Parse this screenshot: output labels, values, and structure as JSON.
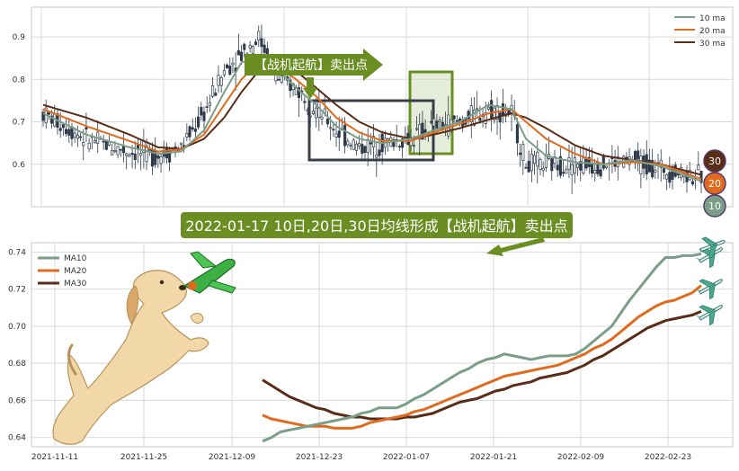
{
  "colors": {
    "ma10": "#7a9e88",
    "ma20": "#e06b1e",
    "ma30": "#5a2d18",
    "candle": "#2e3a4a",
    "arrow_green": "#6b8e23",
    "banner_bg": "#6b8e23",
    "banner_border": "#4b2a6a",
    "frame_dark": "#3a3f47",
    "grid": "#d9d9d9",
    "plot_bg": "#ffffff"
  },
  "annotation": {
    "arrow_text": "【战机起航】卖出点",
    "banner_text": "2022-01-17 10日,20日,30日均线形成【战机起航】卖出点"
  },
  "badges": [
    "30",
    "20",
    "10"
  ],
  "icons": [
    "airplane-icon",
    "dog-illustration",
    "toy-plane-icon"
  ],
  "chart_data": [
    {
      "type": "line",
      "panel": "top",
      "title": "",
      "ylim": [
        0.5,
        0.97
      ],
      "yticks": [
        0.6,
        0.7,
        0.8,
        0.9
      ],
      "ytick_labels": [
        "0.6",
        "0.7",
        "0.8",
        "0.9"
      ],
      "grid": true,
      "legend_position": "top-right",
      "series_names": [
        "10 ma",
        "20 ma",
        "30 ma"
      ],
      "n_bars": 230,
      "price_key": [
        [
          0,
          0.72
        ],
        [
          15,
          0.66
        ],
        [
          30,
          0.63
        ],
        [
          40,
          0.62
        ],
        [
          48,
          0.64
        ],
        [
          56,
          0.72
        ],
        [
          63,
          0.82
        ],
        [
          69,
          0.86
        ],
        [
          75,
          0.9
        ],
        [
          82,
          0.8
        ],
        [
          88,
          0.78
        ],
        [
          95,
          0.73
        ],
        [
          102,
          0.68
        ],
        [
          110,
          0.64
        ],
        [
          118,
          0.65
        ],
        [
          128,
          0.66
        ],
        [
          136,
          0.69
        ],
        [
          145,
          0.7
        ],
        [
          155,
          0.73
        ],
        [
          163,
          0.72
        ],
        [
          168,
          0.6
        ],
        [
          175,
          0.6
        ],
        [
          185,
          0.6
        ],
        [
          195,
          0.6
        ],
        [
          205,
          0.61
        ],
        [
          215,
          0.59
        ],
        [
          229,
          0.57
        ]
      ],
      "ma10_key": [
        [
          0,
          0.72
        ],
        [
          15,
          0.67
        ],
        [
          30,
          0.64
        ],
        [
          40,
          0.625
        ],
        [
          48,
          0.63
        ],
        [
          56,
          0.68
        ],
        [
          63,
          0.77
        ],
        [
          69,
          0.84
        ],
        [
          75,
          0.85
        ],
        [
          82,
          0.82
        ],
        [
          88,
          0.78
        ],
        [
          95,
          0.74
        ],
        [
          102,
          0.69
        ],
        [
          110,
          0.66
        ],
        [
          118,
          0.65
        ],
        [
          128,
          0.66
        ],
        [
          136,
          0.68
        ],
        [
          145,
          0.7
        ],
        [
          155,
          0.74
        ],
        [
          163,
          0.73
        ],
        [
          168,
          0.66
        ],
        [
          175,
          0.62
        ],
        [
          185,
          0.605
        ],
        [
          195,
          0.6
        ],
        [
          205,
          0.61
        ],
        [
          215,
          0.595
        ],
        [
          229,
          0.56
        ]
      ],
      "ma20_key": [
        [
          0,
          0.73
        ],
        [
          15,
          0.69
        ],
        [
          30,
          0.655
        ],
        [
          40,
          0.63
        ],
        [
          48,
          0.635
        ],
        [
          56,
          0.67
        ],
        [
          63,
          0.74
        ],
        [
          69,
          0.8
        ],
        [
          75,
          0.84
        ],
        [
          82,
          0.83
        ],
        [
          88,
          0.8
        ],
        [
          95,
          0.76
        ],
        [
          102,
          0.71
        ],
        [
          110,
          0.675
        ],
        [
          118,
          0.655
        ],
        [
          128,
          0.655
        ],
        [
          136,
          0.675
        ],
        [
          145,
          0.695
        ],
        [
          155,
          0.72
        ],
        [
          163,
          0.73
        ],
        [
          168,
          0.7
        ],
        [
          175,
          0.66
        ],
        [
          185,
          0.625
        ],
        [
          195,
          0.6
        ],
        [
          205,
          0.605
        ],
        [
          215,
          0.6
        ],
        [
          229,
          0.565
        ]
      ],
      "ma30_key": [
        [
          0,
          0.74
        ],
        [
          15,
          0.71
        ],
        [
          30,
          0.67
        ],
        [
          40,
          0.64
        ],
        [
          48,
          0.636
        ],
        [
          56,
          0.66
        ],
        [
          63,
          0.71
        ],
        [
          69,
          0.77
        ],
        [
          75,
          0.82
        ],
        [
          82,
          0.83
        ],
        [
          88,
          0.82
        ],
        [
          95,
          0.78
        ],
        [
          102,
          0.74
        ],
        [
          110,
          0.7
        ],
        [
          118,
          0.675
        ],
        [
          128,
          0.66
        ],
        [
          136,
          0.67
        ],
        [
          145,
          0.685
        ],
        [
          155,
          0.705
        ],
        [
          163,
          0.72
        ],
        [
          168,
          0.71
        ],
        [
          175,
          0.685
        ],
        [
          185,
          0.645
        ],
        [
          195,
          0.62
        ],
        [
          205,
          0.61
        ],
        [
          215,
          0.6
        ],
        [
          229,
          0.575
        ]
      ]
    },
    {
      "type": "line",
      "panel": "bottom",
      "title": "",
      "ylim": [
        0.635,
        0.745
      ],
      "yticks": [
        0.64,
        0.66,
        0.68,
        0.7,
        0.72,
        0.74
      ],
      "ytick_labels": [
        "0.64",
        "0.66",
        "0.68",
        "0.70",
        "0.72",
        "0.74"
      ],
      "x_labels": [
        "2021-11-11",
        "2021-11-25",
        "2021-12-09",
        "2021-12-23",
        "2022-01-07",
        "2022-01-21",
        "2022-02-09",
        "2022-02-23"
      ],
      "grid": true,
      "legend_position": "top-left",
      "series": [
        {
          "name": "MA10",
          "values": [
            0.638,
            0.64,
            0.643,
            0.644,
            0.645,
            0.646,
            0.647,
            0.648,
            0.649,
            0.65,
            0.651,
            0.653,
            0.654,
            0.656,
            0.656,
            0.656,
            0.658,
            0.661,
            0.663,
            0.666,
            0.669,
            0.672,
            0.675,
            0.677,
            0.68,
            0.682,
            0.683,
            0.685,
            0.684,
            0.683,
            0.682,
            0.683,
            0.684,
            0.684,
            0.684,
            0.685,
            0.688,
            0.692,
            0.696,
            0.7,
            0.707,
            0.714,
            0.72,
            0.726,
            0.732,
            0.737,
            0.737,
            0.738,
            0.738,
            0.739
          ]
        },
        {
          "name": "MA20",
          "values": [
            0.652,
            0.65,
            0.649,
            0.648,
            0.647,
            0.646,
            0.646,
            0.646,
            0.645,
            0.645,
            0.645,
            0.646,
            0.648,
            0.649,
            0.65,
            0.651,
            0.652,
            0.654,
            0.655,
            0.657,
            0.659,
            0.661,
            0.663,
            0.665,
            0.667,
            0.669,
            0.671,
            0.673,
            0.674,
            0.675,
            0.676,
            0.677,
            0.678,
            0.679,
            0.681,
            0.683,
            0.685,
            0.688,
            0.69,
            0.693,
            0.697,
            0.701,
            0.705,
            0.708,
            0.711,
            0.713,
            0.714,
            0.716,
            0.718,
            0.722
          ]
        },
        {
          "name": "MA30",
          "values": [
            0.671,
            0.668,
            0.665,
            0.662,
            0.66,
            0.658,
            0.656,
            0.655,
            0.653,
            0.652,
            0.651,
            0.651,
            0.65,
            0.65,
            0.65,
            0.65,
            0.651,
            0.651,
            0.652,
            0.653,
            0.655,
            0.657,
            0.659,
            0.66,
            0.661,
            0.663,
            0.665,
            0.666,
            0.668,
            0.669,
            0.67,
            0.672,
            0.673,
            0.674,
            0.675,
            0.677,
            0.679,
            0.682,
            0.684,
            0.687,
            0.69,
            0.693,
            0.696,
            0.699,
            0.701,
            0.703,
            0.704,
            0.705,
            0.706,
            0.708
          ]
        }
      ]
    }
  ]
}
